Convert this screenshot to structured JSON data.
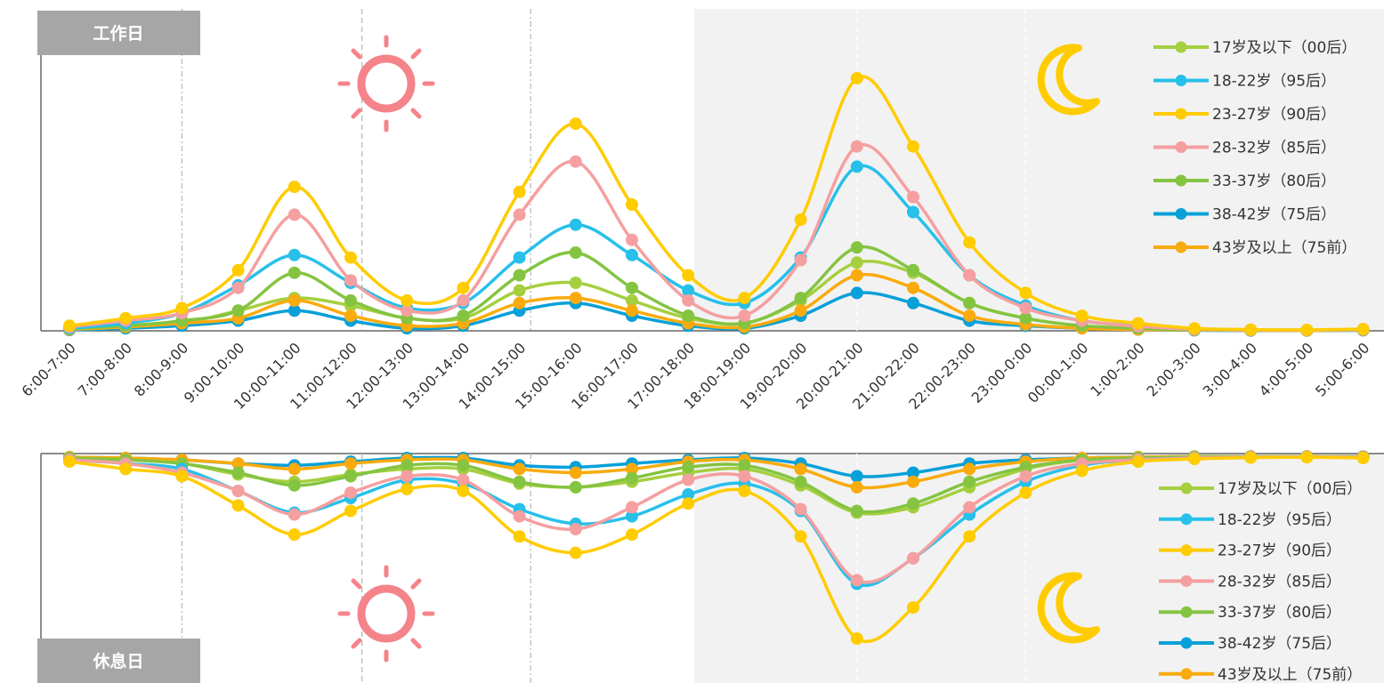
{
  "chart_data": [
    {
      "type": "line",
      "title": "工作日",
      "categories": [
        "6:00-7:00",
        "7:00-8:00",
        "8:00-9:00",
        "9:00-10:00",
        "10:00-11:00",
        "11:00-12:00",
        "12:00-13:00",
        "13:00-14:00",
        "14:00-15:00",
        "15:00-16:00",
        "16:00-17:00",
        "17:00-18:00",
        "18:00-19:00",
        "19:00-20:00",
        "20:00-21:00",
        "21:00-22:00",
        "22:00-23:00",
        "23:00-0:00",
        "00:00-1:00",
        "1:00-2:00",
        "2:00-3:00",
        "3:00-4:00",
        "4:00-5:00",
        "5:00-6:00"
      ],
      "icons": [
        "sun-icon",
        "moon-icon"
      ],
      "legend_position": "top-right",
      "series": [
        {
          "name": "17岁及以下（00后）",
          "color": "#a5cf3f",
          "values": [
            0.5,
            1.5,
            3,
            8,
            13,
            10,
            5,
            5,
            16,
            19,
            12,
            5,
            3,
            12,
            27,
            23,
            11,
            5,
            2,
            1,
            0.5,
            0.3,
            0.2,
            0.3
          ]
        },
        {
          "name": "18-22岁（95后）",
          "color": "#27c0ea",
          "values": [
            1,
            3,
            7,
            18,
            30,
            19,
            9,
            11,
            29,
            42,
            30,
            16,
            11,
            29,
            65,
            47,
            22,
            10,
            4,
            2,
            0.8,
            0.4,
            0.3,
            0.5
          ]
        },
        {
          "name": "23-27岁（90后）",
          "color": "#ffcc00",
          "values": [
            2,
            5,
            9,
            24,
            57,
            29,
            12,
            17,
            55,
            82,
            50,
            22,
            13,
            44,
            100,
            73,
            35,
            15,
            6,
            3,
            1,
            0.5,
            0.4,
            0.7
          ]
        },
        {
          "name": "28-32岁（85后）",
          "color": "#f59fa0",
          "values": [
            1.5,
            4,
            7,
            17,
            46,
            20,
            8,
            12,
            46,
            67,
            36,
            12,
            6,
            28,
            73,
            53,
            22,
            9,
            4,
            1.8,
            0.6,
            0.3,
            0.2,
            0.5
          ]
        },
        {
          "name": "33-37岁（80后）",
          "color": "#84c441",
          "values": [
            0.8,
            2,
            4,
            8,
            23,
            12,
            5,
            6,
            22,
            31,
            17,
            6,
            3,
            13,
            33,
            24,
            11,
            5,
            2,
            1,
            0.4,
            0.2,
            0.1,
            0.3
          ]
        },
        {
          "name": "38-42岁（75后）",
          "color": "#07a0d9",
          "values": [
            0.3,
            1,
            2,
            4,
            8,
            4,
            1,
            2,
            8,
            11,
            6,
            2,
            1,
            6,
            15,
            11,
            4,
            2,
            1,
            0.5,
            0.2,
            0.1,
            0.1,
            0.2
          ]
        },
        {
          "name": "43岁及以上（75前）",
          "color": "#f9ab0d",
          "values": [
            0.5,
            1.5,
            3,
            5,
            12,
            6,
            2,
            3,
            11,
            13,
            8,
            3,
            1.5,
            8,
            22,
            17,
            6,
            2.5,
            1,
            0.5,
            0.3,
            0.2,
            0.1,
            0.3
          ]
        }
      ]
    },
    {
      "type": "line",
      "title": "休息日",
      "categories": [
        "6:00-7:00",
        "7:00-8:00",
        "8:00-9:00",
        "9:00-10:00",
        "10:00-11:00",
        "11:00-12:00",
        "12:00-13:00",
        "13:00-14:00",
        "14:00-15:00",
        "15:00-16:00",
        "16:00-17:00",
        "17:00-18:00",
        "18:00-19:00",
        "19:00-20:00",
        "20:00-21:00",
        "21:00-22:00",
        "22:00-23:00",
        "23:00-0:00",
        "00:00-1:00",
        "1:00-2:00",
        "2:00-3:00",
        "3:00-4:00",
        "4:00-5:00",
        "5:00-6:00"
      ],
      "icons": [
        "sun-icon",
        "moon-icon"
      ],
      "legend_position": "bottom-right",
      "inverted": true,
      "series": [
        {
          "name": "17岁及以下（00后）",
          "color": "#a5cf3f",
          "values": [
            1,
            2,
            4,
            10,
            14,
            10,
            7,
            7,
            15,
            17,
            14,
            9,
            7,
            16,
            31,
            28,
            17,
            7,
            2,
            1,
            0.5,
            0.3,
            0.2,
            0.3
          ]
        },
        {
          "name": "18-22岁（95后）",
          "color": "#27c0ea",
          "values": [
            2,
            4,
            7,
            19,
            31,
            23,
            13,
            15,
            29,
            37,
            33,
            21,
            15,
            30,
            70,
            56,
            32,
            14,
            5,
            2,
            1,
            0.5,
            0.4,
            0.6
          ]
        },
        {
          "name": "23-27岁（90后）",
          "color": "#ffcc00",
          "values": [
            3,
            7,
            11,
            27,
            43,
            30,
            18,
            19,
            44,
            53,
            43,
            26,
            19,
            44,
            100,
            83,
            44,
            20,
            8,
            3,
            1.5,
            0.8,
            0.6,
            1
          ]
        },
        {
          "name": "28-32岁（85后）",
          "color": "#f59fa0",
          "values": [
            2,
            4,
            9,
            19,
            32,
            20,
            11,
            13,
            33,
            40,
            28,
            13,
            11,
            29,
            68,
            56,
            28,
            11,
            4,
            2,
            1,
            0.5,
            0.3,
            0.6
          ]
        },
        {
          "name": "33-37岁（80后）",
          "color": "#84c441",
          "values": [
            1,
            2,
            4,
            9,
            16,
            11,
            5,
            5,
            14,
            17,
            12,
            6,
            5,
            14,
            30,
            26,
            14,
            6,
            2,
            1,
            0.4,
            0.2,
            0.1,
            0.3
          ]
        },
        {
          "name": "38-42岁（75后）",
          "color": "#07a0d9",
          "values": [
            0.5,
            1,
            2,
            4,
            5,
            3,
            1,
            1,
            5,
            6,
            4,
            2,
            1,
            4,
            11,
            9,
            4,
            2,
            1,
            0.5,
            0.2,
            0.1,
            0.1,
            0.2
          ]
        },
        {
          "name": "43岁及以上（75前）",
          "color": "#f9ab0d",
          "values": [
            0.5,
            1,
            2,
            4,
            7,
            4,
            2,
            2,
            7,
            9,
            7,
            3,
            2,
            7,
            17,
            14,
            7,
            3,
            1,
            0.5,
            0.2,
            0.1,
            0.1,
            0.2
          ]
        }
      ]
    }
  ]
}
